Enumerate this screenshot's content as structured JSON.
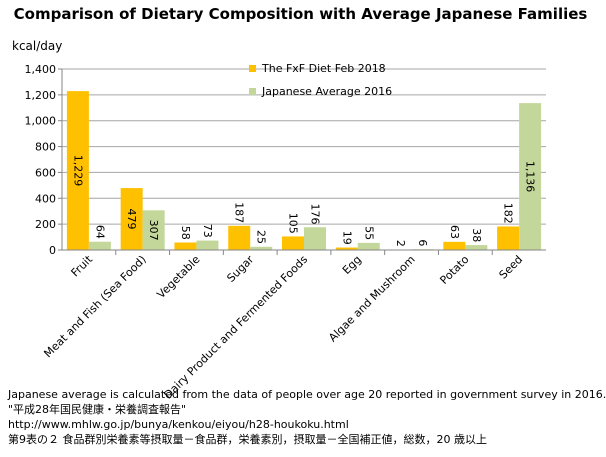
{
  "chart_data": {
    "type": "bar",
    "title": "Comparison of Dietary Composition with Average Japanese Families",
    "ylabel": "kcal/day",
    "ylim": [
      0,
      1400
    ],
    "yticks": [
      "0",
      "200",
      "400",
      "600",
      "800",
      "1,000",
      "1,200",
      "1,400"
    ],
    "ytick_values": [
      0,
      200,
      400,
      600,
      800,
      1000,
      1200,
      1400
    ],
    "grid": true,
    "legend_position": "top-center",
    "categories": [
      "Fruit",
      "Meat and Fish (Sea Food)",
      "Vegetable",
      "Sugar",
      "Dairy Product and Fermented Foods",
      "Egg",
      "Algae and Mushroom",
      "Potato",
      "Seed"
    ],
    "series": [
      {
        "name": "The FxF Diet Feb 2018",
        "color": "#FFC000",
        "values": [
          1229,
          479,
          58,
          187,
          105,
          19,
          2,
          63,
          182
        ],
        "labels": [
          "1,229",
          "479",
          "58",
          "187",
          "105",
          "19",
          "2",
          "63",
          "182"
        ]
      },
      {
        "name": "Japanese Average 2016",
        "color": "#C4D79B",
        "values": [
          64,
          307,
          73,
          25,
          176,
          55,
          6,
          38,
          1136
        ],
        "labels": [
          "64",
          "307",
          "73",
          "25",
          "176",
          "55",
          "6",
          "38",
          "1,136"
        ]
      }
    ]
  },
  "notes": [
    "Japanese average is calculated from the data of people over age 20 reported in government survey in 2016.",
    "\"平成28年国民健康・栄養調査報告\"",
    "http://www.mhlw.go.jp/bunya/kenkou/eiyou/h28-houkoku.html",
    "第9表の２ 食品群別栄養素等摂取量－食品群，栄養素別，摂取量－全国補正値，総数，20 歳以上"
  ]
}
